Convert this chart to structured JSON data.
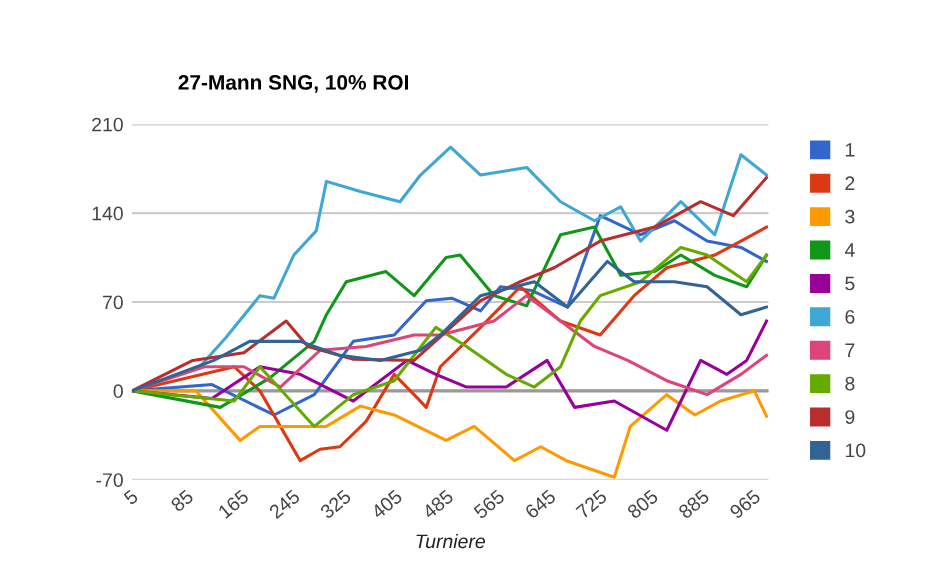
{
  "chart_data": {
    "type": "line",
    "title": "27-Mann SNG, 10% ROI",
    "xlabel": "Turniere",
    "xlim": [
      5,
      1000
    ],
    "xticks": [
      5,
      85,
      165,
      245,
      325,
      405,
      485,
      565,
      645,
      725,
      805,
      885,
      965
    ],
    "ylim": [
      -70,
      210
    ],
    "yticks": [
      -70,
      0,
      70,
      140,
      210
    ],
    "grid": "y",
    "legend": "right",
    "marker": "none",
    "line_style": "solid",
    "ref_lines": [
      {
        "axis": "y",
        "value": 0,
        "color": "#999999"
      }
    ],
    "series": [
      {
        "name": "1",
        "color": "#3366cc",
        "x": [
          5,
          130,
          227,
          290,
          351,
          415,
          465,
          505,
          550,
          581,
          630,
          686,
          737,
          800,
          853,
          904,
          957,
          997
        ],
        "values": [
          0,
          5,
          -19,
          -3,
          39,
          44,
          71,
          73,
          63,
          82,
          79,
          66,
          138,
          123,
          134,
          118,
          113,
          102
        ]
      },
      {
        "name": "2",
        "color": "#dc3912",
        "x": [
          5,
          165,
          205,
          268,
          299,
          330,
          371,
          415,
          446,
          465,
          487,
          550,
          612,
          675,
          737,
          790,
          841,
          916,
          957,
          997
        ],
        "values": [
          0,
          19,
          0,
          -55,
          -46,
          -44,
          -24,
          13,
          -3,
          -13,
          19,
          50,
          82,
          55,
          44,
          75,
          97,
          107,
          118,
          129
        ]
      },
      {
        "name": "3",
        "color": "#ff9900",
        "x": [
          5,
          105,
          174,
          205,
          309,
          362,
          415,
          496,
          540,
          603,
          644,
          684,
          759,
          784,
          841,
          885,
          925,
          978,
          997
        ],
        "values": [
          0,
          0,
          -39,
          -28,
          -28,
          -12,
          -19,
          -39,
          -28,
          -55,
          -44,
          -55,
          -68,
          -28,
          -3,
          -19,
          -8,
          0,
          -20
        ]
      },
      {
        "name": "4",
        "color": "#109618",
        "x": [
          5,
          143,
          220,
          290,
          309,
          340,
          402,
          446,
          496,
          518,
          571,
          622,
          675,
          728,
          769,
          822,
          863,
          916,
          966,
          997
        ],
        "values": [
          0,
          -13,
          10,
          39,
          60,
          86,
          94,
          75,
          105,
          107,
          75,
          67,
          123,
          129,
          91,
          94,
          107,
          91,
          82,
          107
        ]
      },
      {
        "name": "5",
        "color": "#990099",
        "x": [
          5,
          130,
          205,
          268,
          351,
          435,
          480,
          528,
          590,
          654,
          697,
          759,
          841,
          894,
          935,
          966,
          997
        ],
        "values": [
          0,
          -6,
          19,
          13,
          -8,
          24,
          13,
          3,
          3,
          24,
          -13,
          -8,
          -31,
          24,
          13,
          24,
          55
        ]
      },
      {
        "name": "6",
        "color": "#3fa7d6",
        "x": [
          5,
          111,
          152,
          205,
          227,
          258,
          293,
          309,
          362,
          424,
          456,
          503,
          550,
          622,
          675,
          728,
          769,
          800,
          863,
          916,
          957,
          997
        ],
        "values": [
          0,
          19,
          42,
          75,
          73,
          107,
          126,
          165,
          157,
          149,
          170,
          192,
          170,
          176,
          149,
          134,
          145,
          118,
          149,
          123,
          186,
          170
        ]
      },
      {
        "name": "7",
        "color": "#dd4477",
        "x": [
          5,
          118,
          180,
          237,
          299,
          371,
          446,
          487,
          571,
          622,
          675,
          728,
          780,
          841,
          904,
          957,
          997
        ],
        "values": [
          0,
          19,
          19,
          3,
          32,
          35,
          44,
          44,
          55,
          75,
          55,
          35,
          24,
          8,
          -3,
          13,
          28
        ]
      },
      {
        "name": "8",
        "color": "#66aa00",
        "x": [
          5,
          165,
          205,
          290,
          351,
          415,
          480,
          528,
          590,
          634,
          675,
          706,
          737,
          800,
          863,
          904,
          966,
          997
        ],
        "values": [
          0,
          -8,
          19,
          -28,
          -3,
          8,
          50,
          35,
          13,
          3,
          19,
          55,
          75,
          86,
          113,
          107,
          86,
          107
        ]
      },
      {
        "name": "9",
        "color": "#b82e2e",
        "x": [
          5,
          100,
          180,
          246,
          280,
          350,
          446,
          550,
          612,
          665,
          737,
          822,
          894,
          945,
          997
        ],
        "values": [
          0,
          24,
          30,
          55,
          35,
          25,
          24,
          71,
          86,
          97,
          118,
          129,
          149,
          138,
          168
        ]
      },
      {
        "name": "10",
        "color": "#316395",
        "x": [
          5,
          133,
          189,
          268,
          330,
          393,
          456,
          487,
          550,
          634,
          686,
          748,
          790,
          853,
          904,
          957,
          997
        ],
        "values": [
          0,
          24,
          39,
          39,
          28,
          24,
          32,
          44,
          75,
          86,
          66,
          102,
          86,
          86,
          82,
          60,
          66
        ]
      }
    ]
  }
}
